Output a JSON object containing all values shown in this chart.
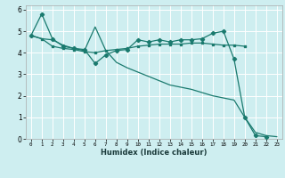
{
  "xlabel": "Humidex (Indice chaleur)",
  "background_color": "#ceeef0",
  "grid_color": "#ffffff",
  "line_color": "#1a7a6e",
  "xlim": [
    -0.5,
    23.5
  ],
  "ylim": [
    0,
    6.2
  ],
  "yticks": [
    0,
    1,
    2,
    3,
    4,
    5,
    6
  ],
  "xticks": [
    0,
    1,
    2,
    3,
    4,
    5,
    6,
    7,
    8,
    9,
    10,
    11,
    12,
    13,
    14,
    15,
    16,
    17,
    18,
    19,
    20,
    21,
    22,
    23
  ],
  "series1_x": [
    0,
    1,
    2,
    3,
    4,
    5,
    6,
    7,
    8,
    9,
    10,
    11,
    12,
    13,
    14,
    15,
    16,
    17,
    18,
    19,
    20,
    21,
    22
  ],
  "series1_y": [
    4.8,
    5.8,
    4.65,
    4.3,
    4.2,
    4.15,
    3.5,
    3.9,
    4.1,
    4.15,
    4.6,
    4.5,
    4.6,
    4.5,
    4.6,
    4.6,
    4.65,
    4.9,
    5.0,
    3.7,
    1.0,
    0.15,
    0.1
  ],
  "series2_x": [
    0,
    1,
    2,
    3,
    4,
    5,
    6,
    7,
    8,
    9,
    10,
    11,
    12,
    13,
    14,
    15,
    16,
    17,
    18,
    19,
    20,
    21,
    22,
    23
  ],
  "series2_y": [
    4.8,
    4.65,
    4.6,
    4.35,
    4.2,
    4.1,
    5.2,
    4.1,
    3.55,
    3.3,
    3.1,
    2.9,
    2.7,
    2.5,
    2.4,
    2.3,
    2.15,
    2.0,
    1.9,
    1.8,
    1.0,
    0.3,
    0.15,
    0.1
  ],
  "series3_x": [
    0,
    1,
    2,
    3,
    4,
    5,
    6,
    7,
    8,
    9,
    10,
    11,
    12,
    13,
    14,
    15,
    16,
    17,
    18,
    19,
    20
  ],
  "series3_y": [
    4.8,
    4.65,
    4.3,
    4.2,
    4.15,
    4.05,
    4.0,
    4.1,
    4.15,
    4.2,
    4.3,
    4.35,
    4.4,
    4.4,
    4.4,
    4.45,
    4.45,
    4.4,
    4.35,
    4.35,
    4.3
  ]
}
